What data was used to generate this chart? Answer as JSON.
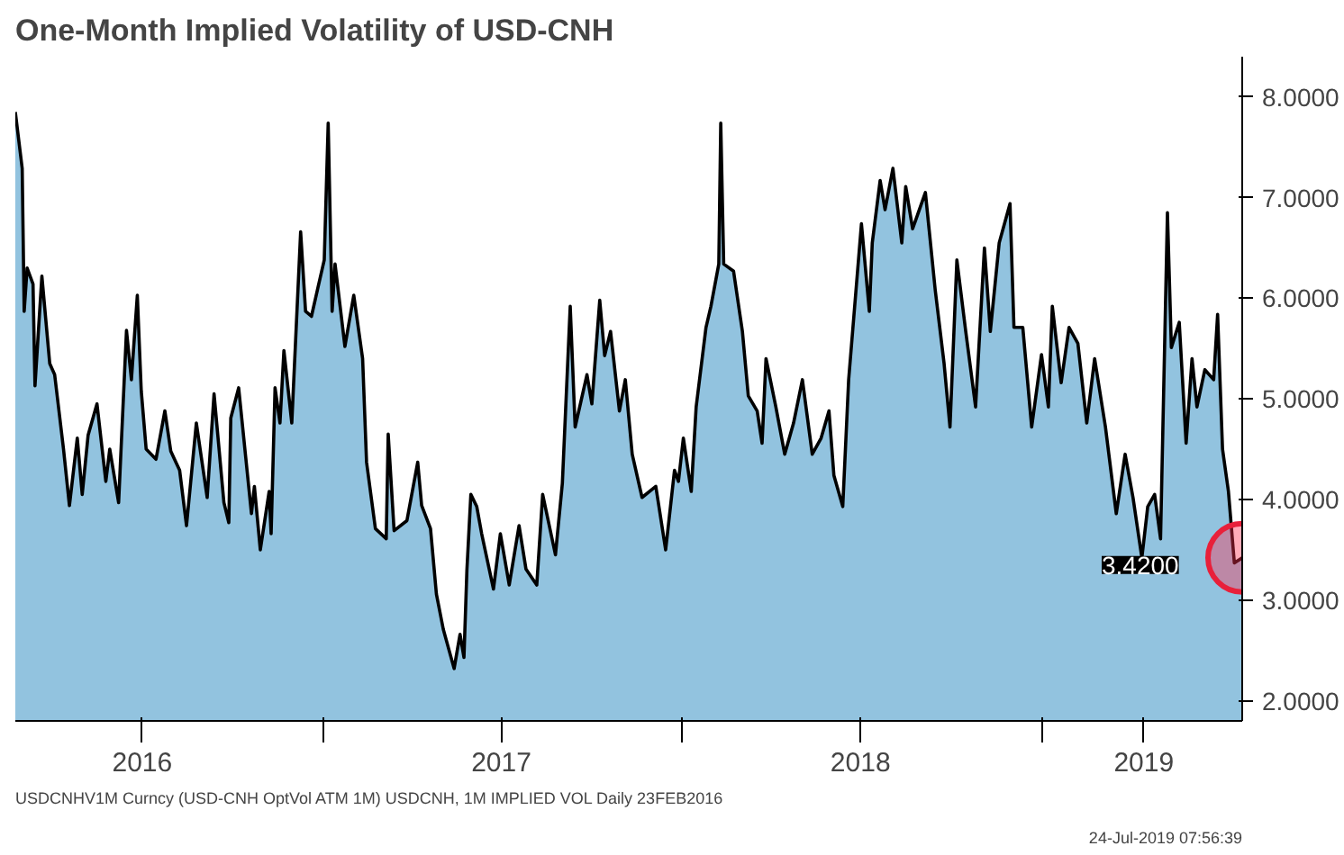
{
  "chart_data": {
    "type": "area",
    "title": "One-Month Implied Volatility of USD-CNH",
    "x": [
      "2016-02-23",
      "2016-03-01",
      "2016-03-03",
      "2016-03-06",
      "2016-03-12",
      "2016-03-14",
      "2016-03-21",
      "2016-03-29",
      "2016-04-03",
      "2016-04-12",
      "2016-04-18",
      "2016-04-26",
      "2016-05-01",
      "2016-05-07",
      "2016-05-16",
      "2016-05-25",
      "2016-05-29",
      "2016-06-07",
      "2016-06-15",
      "2016-06-20",
      "2016-06-26",
      "2016-06-30",
      "2016-07-05",
      "2016-07-15",
      "2016-07-24",
      "2016-07-30",
      "2016-08-08",
      "2016-08-15",
      "2016-08-25",
      "2016-09-05",
      "2016-09-12",
      "2016-09-22",
      "2016-09-27",
      "2016-09-29",
      "2016-10-07",
      "2016-10-20",
      "2016-10-23",
      "2016-10-29",
      "2016-11-07",
      "2016-11-09",
      "2016-11-13",
      "2016-11-18",
      "2016-11-22",
      "2016-11-30",
      "2016-12-09",
      "2016-12-14",
      "2016-12-20",
      "2016-12-26",
      "2017-01-02",
      "2017-01-06",
      "2017-01-10",
      "2017-01-13",
      "2017-01-23",
      "2017-02-01",
      "2017-02-10",
      "2017-02-14",
      "2017-02-23",
      "2017-03-06",
      "2017-03-08",
      "2017-03-14",
      "2017-03-27",
      "2017-04-07",
      "2017-04-11",
      "2017-04-20",
      "2017-04-26",
      "2017-05-03",
      "2017-05-14",
      "2017-05-20",
      "2017-05-24",
      "2017-05-27",
      "2017-05-31",
      "2017-06-06",
      "2017-06-11",
      "2017-06-23",
      "2017-06-30",
      "2017-07-09",
      "2017-07-19",
      "2017-07-26",
      "2017-08-06",
      "2017-08-12",
      "2017-08-25",
      "2017-09-01",
      "2017-09-09",
      "2017-09-14",
      "2017-09-26",
      "2017-10-01",
      "2017-10-09",
      "2017-10-14",
      "2017-10-20",
      "2017-10-29",
      "2017-11-04",
      "2017-11-11",
      "2017-11-21",
      "2017-12-05",
      "2017-12-15",
      "2017-12-24",
      "2017-12-28",
      "2018-01-02",
      "2018-01-10",
      "2018-01-15",
      "2018-01-25",
      "2018-01-30",
      "2018-02-07",
      "2018-02-09",
      "2018-02-12",
      "2018-02-22",
      "2018-03-03",
      "2018-03-09",
      "2018-03-18",
      "2018-03-23",
      "2018-03-27",
      "2018-04-06",
      "2018-04-15",
      "2018-04-24",
      "2018-05-03",
      "2018-05-13",
      "2018-05-22",
      "2018-05-30",
      "2018-06-04",
      "2018-06-13",
      "2018-06-19",
      "2018-07-02",
      "2018-07-10",
      "2018-07-13",
      "2018-07-21",
      "2018-07-26",
      "2018-08-03",
      "2018-08-12",
      "2018-08-16",
      "2018-08-23",
      "2018-09-05",
      "2018-09-15",
      "2018-09-24",
      "2018-09-30",
      "2018-10-07",
      "2018-10-16",
      "2018-10-26",
      "2018-11-04",
      "2018-11-10",
      "2018-11-19",
      "2018-11-30",
      "2018-12-04",
      "2018-12-13",
      "2018-12-22",
      "2019-01-01",
      "2019-01-08",
      "2019-01-12",
      "2019-01-21",
      "2019-01-29",
      "2019-02-07",
      "2019-02-16",
      "2019-02-24",
      "2019-03-07",
      "2019-03-18",
      "2019-03-27",
      "2019-04-04",
      "2019-04-13",
      "2019-04-19",
      "2019-04-26",
      "2019-05-02",
      "2019-05-09",
      "2019-05-13",
      "2019-05-21",
      "2019-05-28",
      "2019-06-03",
      "2019-06-08",
      "2019-06-16",
      "2019-06-25",
      "2019-06-29",
      "2019-07-04",
      "2019-07-10",
      "2019-07-16",
      "2019-07-24"
    ],
    "series": [
      {
        "color": "#92c3df",
        "values": [
          7.85,
          7.29,
          5.87,
          6.3,
          6.14,
          5.13,
          6.22,
          5.35,
          5.24,
          4.5,
          3.94,
          4.61,
          4.05,
          4.64,
          4.95,
          4.18,
          4.5,
          3.97,
          5.68,
          5.19,
          6.03,
          5.08,
          4.5,
          4.4,
          4.88,
          4.48,
          4.29,
          3.74,
          4.76,
          4.02,
          5.05,
          3.97,
          3.77,
          4.81,
          5.11,
          3.86,
          4.13,
          3.5,
          4.08,
          3.66,
          5.11,
          4.76,
          5.48,
          4.76,
          6.66,
          5.87,
          5.82,
          6.08,
          6.38,
          7.74,
          5.87,
          6.34,
          5.52,
          6.03,
          5.4,
          4.37,
          3.71,
          3.61,
          4.65,
          3.69,
          3.79,
          4.37,
          3.94,
          3.71,
          3.06,
          2.71,
          2.32,
          2.66,
          2.43,
          3.3,
          4.05,
          3.93,
          3.66,
          3.11,
          3.66,
          3.15,
          3.74,
          3.31,
          3.15,
          4.05,
          3.45,
          4.16,
          5.92,
          4.72,
          5.24,
          4.95,
          5.98,
          5.43,
          5.67,
          4.88,
          5.19,
          4.45,
          4.02,
          4.13,
          3.5,
          4.29,
          4.18,
          4.61,
          4.08,
          4.92,
          5.71,
          5.92,
          6.34,
          7.74,
          6.34,
          6.27,
          5.67,
          5.03,
          4.88,
          4.56,
          5.4,
          4.92,
          4.45,
          4.76,
          5.19,
          4.45,
          4.61,
          4.88,
          4.24,
          3.93,
          5.19,
          6.74,
          5.87,
          6.55,
          7.17,
          6.88,
          7.29,
          6.55,
          7.11,
          6.69,
          7.05,
          6.08,
          5.35,
          4.72,
          6.38,
          5.67,
          4.92,
          6.5,
          5.67,
          6.55,
          6.94,
          5.71,
          5.71,
          4.72,
          5.44,
          4.92,
          5.92,
          5.16,
          5.71,
          5.55,
          4.76,
          5.4,
          4.72,
          3.86,
          4.45,
          4.02,
          3.42,
          3.93,
          4.05,
          3.61,
          6.85,
          5.51,
          5.76,
          4.56,
          5.4,
          4.92,
          5.29,
          5.19,
          5.84,
          4.5,
          4.08,
          3.37,
          3.42
        ],
        "value_labels": [
          null,
          null,
          null,
          null,
          null,
          null,
          null,
          null,
          null,
          null,
          null,
          null,
          null,
          null,
          null,
          null,
          null,
          null,
          null,
          null,
          null,
          null,
          null,
          null,
          null,
          null,
          null,
          null,
          null,
          null,
          null,
          null,
          null,
          null,
          null,
          null,
          null,
          null,
          null,
          null,
          null,
          null,
          null,
          null,
          null,
          null,
          null,
          null,
          null,
          null,
          null,
          null,
          null,
          null,
          null,
          null,
          null,
          null,
          null,
          null,
          null,
          null,
          null,
          null,
          null,
          null,
          null,
          null,
          null,
          null,
          null,
          null,
          null,
          null,
          null,
          null,
          null,
          null,
          null,
          null,
          null,
          null,
          null,
          null,
          null,
          null,
          null,
          null,
          null,
          null,
          null,
          null,
          null,
          null,
          null,
          null,
          null,
          null,
          null,
          null,
          null,
          null,
          null,
          null,
          null,
          null,
          null,
          null,
          null,
          null,
          null,
          null,
          null,
          null,
          null,
          null,
          null,
          null,
          null,
          null,
          null,
          null,
          null,
          null,
          null,
          null,
          null,
          null,
          null,
          null,
          null,
          null,
          null,
          null,
          null,
          null,
          null,
          null,
          null,
          null,
          null,
          null,
          null,
          null,
          null,
          null,
          null,
          null,
          null,
          null,
          null,
          null,
          null,
          null,
          null,
          null,
          null,
          null,
          null,
          null,
          null,
          null,
          null,
          null,
          null,
          null,
          null,
          null,
          null,
          null,
          null,
          null,
          "3.4200"
        ]
      }
    ],
    "xlim": [
      "2016-02-23",
      "2019-07-24"
    ],
    "xticks": [
      {
        "value": "2016-07-01",
        "label": "2016"
      },
      {
        "value": "2017-01-01",
        "label": null
      },
      {
        "value": "2017-07-01",
        "label": "2017"
      },
      {
        "value": "2018-01-01",
        "label": null
      },
      {
        "value": "2018-07-01",
        "label": "2018"
      },
      {
        "value": "2019-01-01",
        "label": null
      },
      {
        "value": "2019-04-15",
        "label": "2019"
      }
    ],
    "ylim": [
      1.8,
      8.4
    ],
    "yticks": [
      {
        "value": 2,
        "label": "2.0000"
      },
      {
        "value": 3,
        "label": "3.0000"
      },
      {
        "value": 4,
        "label": "4.0000"
      },
      {
        "value": 5,
        "label": "5.0000"
      },
      {
        "value": 6,
        "label": "6.0000"
      },
      {
        "value": 7,
        "label": "7.0000"
      },
      {
        "value": 8,
        "label": "8.0000"
      }
    ],
    "grid": false,
    "annotations": [
      "USDCNHV1M Curncy (USD-CNH OptVol ATM 1M) USDCNH, 1M IMPLIED VOL  Daily 23FEB2016",
      "24-Jul-2019 07:56:39"
    ]
  }
}
